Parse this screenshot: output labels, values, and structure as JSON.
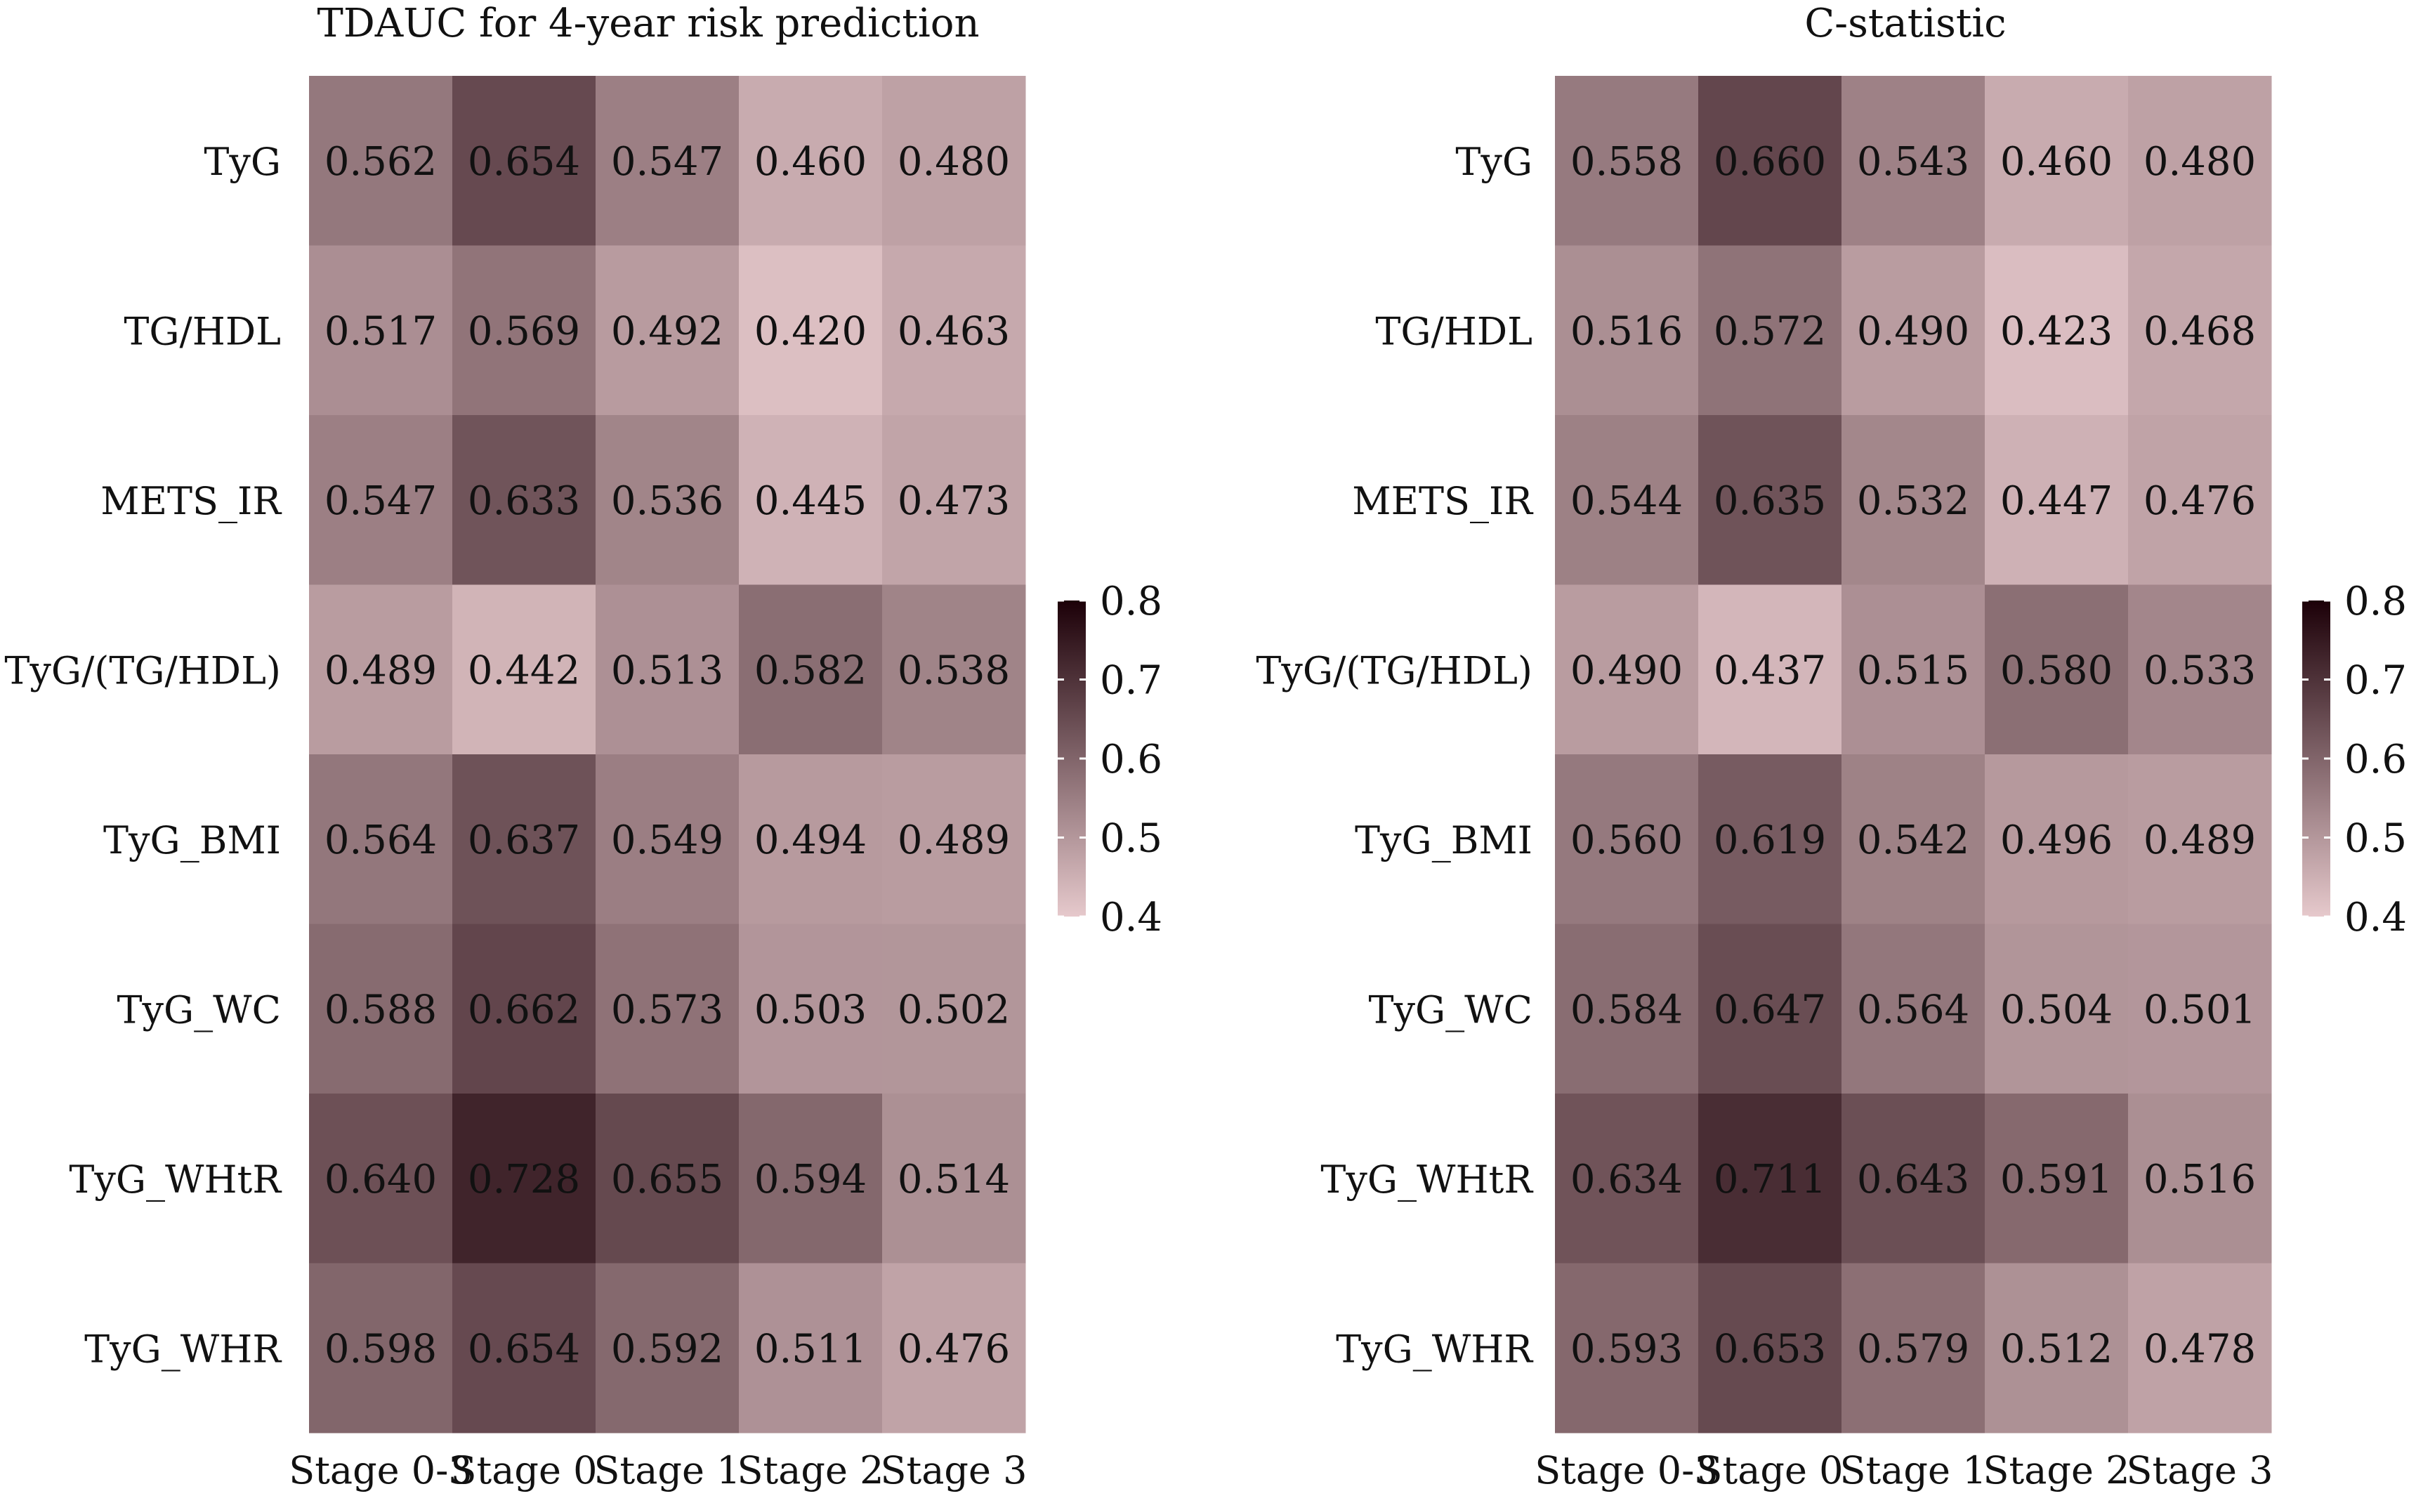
{
  "chart_data": [
    {
      "type": "heatmap",
      "title": "TDAUC for 4-year risk prediction",
      "xlabel": "",
      "ylabel": "",
      "columns": [
        "Stage 0-3",
        "Stage 0",
        "Stage 1",
        "Stage 2",
        "Stage 3"
      ],
      "rows": [
        "TyG",
        "TG/HDL",
        "METS_IR",
        "TyG/(TG/HDL)",
        "TyG_BMI",
        "TyG_WC",
        "TyG_WHtR",
        "TyG_WHR"
      ],
      "values": [
        [
          0.562,
          0.654,
          0.547,
          0.46,
          0.48
        ],
        [
          0.517,
          0.569,
          0.492,
          0.42,
          0.463
        ],
        [
          0.547,
          0.633,
          0.536,
          0.445,
          0.473
        ],
        [
          0.489,
          0.442,
          0.513,
          0.582,
          0.538
        ],
        [
          0.564,
          0.637,
          0.549,
          0.494,
          0.489
        ],
        [
          0.588,
          0.662,
          0.573,
          0.503,
          0.502
        ],
        [
          0.64,
          0.728,
          0.655,
          0.594,
          0.514
        ],
        [
          0.598,
          0.654,
          0.592,
          0.511,
          0.476
        ]
      ],
      "value_labels": [
        [
          "0.562",
          "0.654",
          "0.547",
          "0.460",
          "0.480"
        ],
        [
          "0.517",
          "0.569",
          "0.492",
          "0.420",
          "0.463"
        ],
        [
          "0.547",
          "0.633",
          "0.536",
          "0.445",
          "0.473"
        ],
        [
          "0.489",
          "0.442",
          "0.513",
          "0.582",
          "0.538"
        ],
        [
          "0.564",
          "0.637",
          "0.549",
          "0.494",
          "0.489"
        ],
        [
          "0.588",
          "0.662",
          "0.573",
          "0.503",
          "0.502"
        ],
        [
          "0.640",
          "0.728",
          "0.655",
          "0.594",
          "0.514"
        ],
        [
          "0.598",
          "0.654",
          "0.592",
          "0.511",
          "0.476"
        ]
      ],
      "colorbar": {
        "min": 0.4,
        "max": 0.8,
        "ticks": [
          "0.8",
          "0.7",
          "0.6",
          "0.5",
          "0.4"
        ],
        "low_color": "#e6c9cc",
        "high_color": "#1c0008"
      }
    },
    {
      "type": "heatmap",
      "title": "C-statistic",
      "xlabel": "",
      "ylabel": "",
      "columns": [
        "Stage 0-3",
        "Stage 0",
        "Stage 1",
        "Stage 2",
        "Stage 3"
      ],
      "rows": [
        "TyG",
        "TG/HDL",
        "METS_IR",
        "TyG/(TG/HDL)",
        "TyG_BMI",
        "TyG_WC",
        "TyG_WHtR",
        "TyG_WHR"
      ],
      "values": [
        [
          0.558,
          0.66,
          0.543,
          0.46,
          0.48
        ],
        [
          0.516,
          0.572,
          0.49,
          0.423,
          0.468
        ],
        [
          0.544,
          0.635,
          0.532,
          0.447,
          0.476
        ],
        [
          0.49,
          0.437,
          0.515,
          0.58,
          0.533
        ],
        [
          0.56,
          0.619,
          0.542,
          0.496,
          0.489
        ],
        [
          0.584,
          0.647,
          0.564,
          0.504,
          0.501
        ],
        [
          0.634,
          0.711,
          0.643,
          0.591,
          0.516
        ],
        [
          0.593,
          0.653,
          0.579,
          0.512,
          0.478
        ]
      ],
      "value_labels": [
        [
          "0.558",
          "0.660",
          "0.543",
          "0.460",
          "0.480"
        ],
        [
          "0.516",
          "0.572",
          "0.490",
          "0.423",
          "0.468"
        ],
        [
          "0.544",
          "0.635",
          "0.532",
          "0.447",
          "0.476"
        ],
        [
          "0.490",
          "0.437",
          "0.515",
          "0.580",
          "0.533"
        ],
        [
          "0.560",
          "0.619",
          "0.542",
          "0.496",
          "0.489"
        ],
        [
          "0.584",
          "0.647",
          "0.564",
          "0.504",
          "0.501"
        ],
        [
          "0.634",
          "0.711",
          "0.643",
          "0.591",
          "0.516"
        ],
        [
          "0.593",
          "0.653",
          "0.579",
          "0.512",
          "0.478"
        ]
      ],
      "colorbar": {
        "min": 0.4,
        "max": 0.8,
        "ticks": [
          "0.8",
          "0.7",
          "0.6",
          "0.5",
          "0.4"
        ],
        "low_color": "#e6c9cc",
        "high_color": "#1c0008"
      }
    }
  ]
}
